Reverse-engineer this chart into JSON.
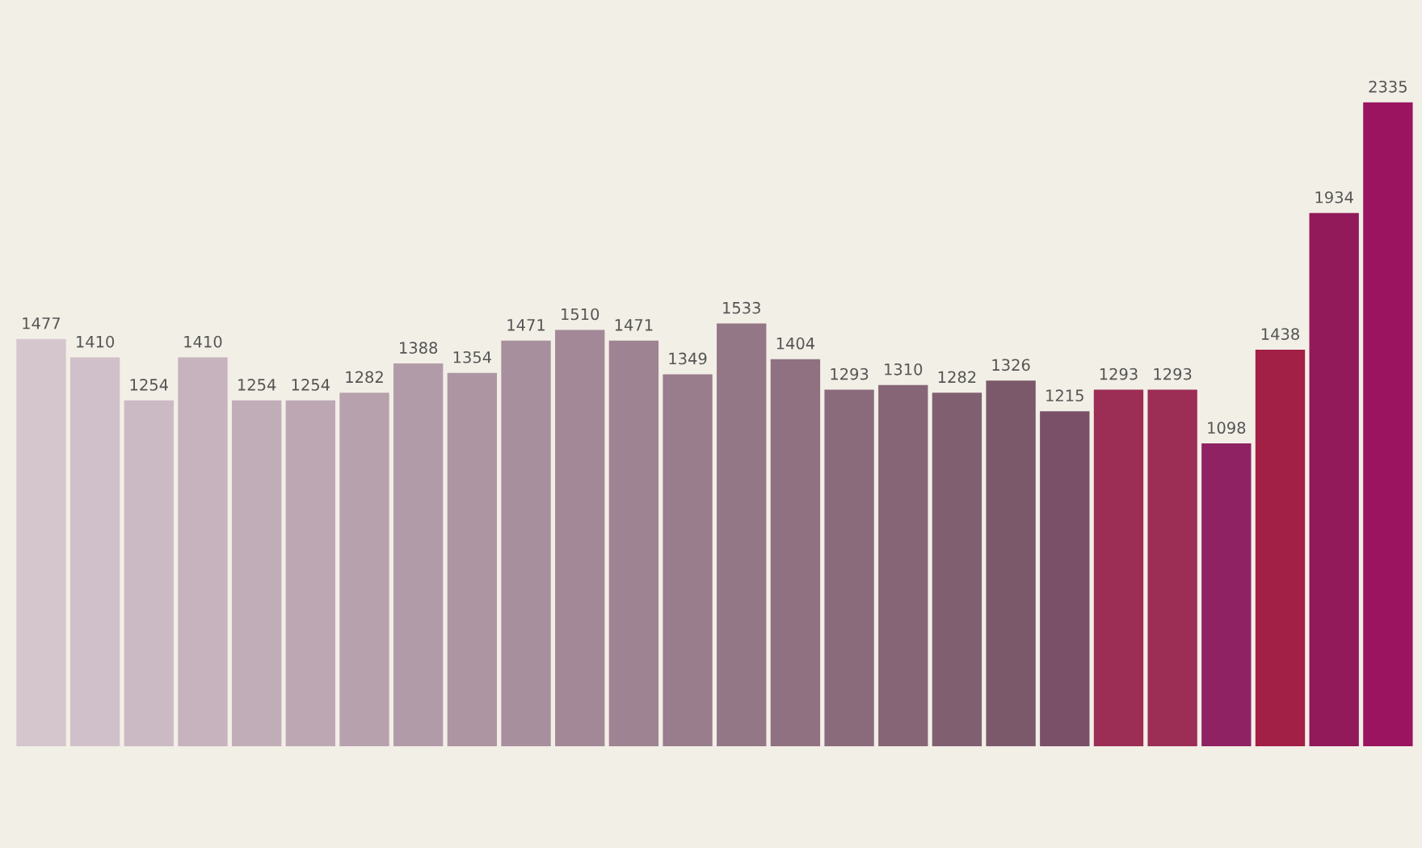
{
  "chart_data": {
    "type": "bar",
    "categories": [
      null,
      null,
      null,
      null,
      null,
      null,
      null,
      null,
      null,
      null,
      null,
      null,
      null,
      null,
      null,
      null,
      null,
      null,
      null,
      null,
      null,
      null,
      null,
      null,
      null,
      null
    ],
    "values": [
      1477,
      1410,
      1254,
      1410,
      1254,
      1254,
      1282,
      1388,
      1354,
      1471,
      1510,
      1471,
      1349,
      1533,
      1404,
      1293,
      1310,
      1282,
      1326,
      1215,
      1293,
      1293,
      1098,
      1438,
      1934,
      2335
    ],
    "colors": [
      "#d5c6ce",
      "#d0c0c9",
      "#cbbac4",
      "#c6b3be",
      "#c1adb8",
      "#bca7b3",
      "#b7a1ad",
      "#b29ba8",
      "#ad95a2",
      "#a88f9d",
      "#a38997",
      "#9e8392",
      "#997d8c",
      "#947787",
      "#8f7181",
      "#8a6b7c",
      "#856576",
      "#805f71",
      "#7b596b",
      "#7a5068",
      "#9c2d55",
      "#9c2d55",
      "#8f2262",
      "#a21f45",
      "#921a5b",
      "#9a145f"
    ],
    "data_labels": true
  }
}
